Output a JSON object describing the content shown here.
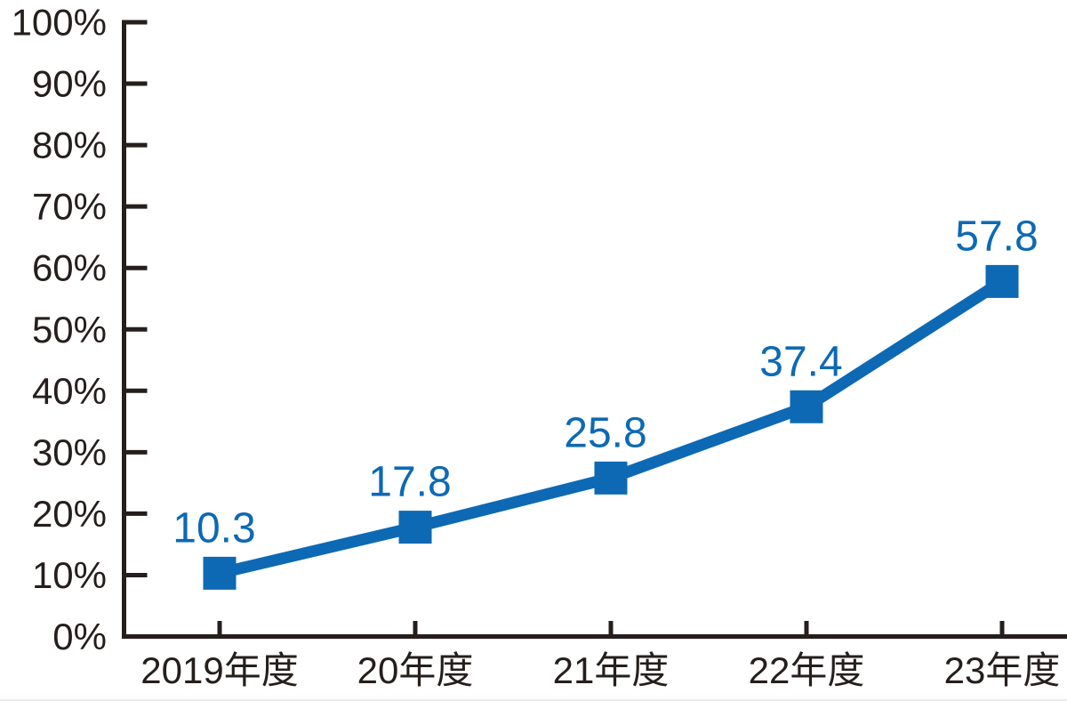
{
  "chart_data": {
    "type": "line",
    "title": "",
    "categories": [
      "2019年度",
      "20年度",
      "21年度",
      "22年度",
      "23年度"
    ],
    "values": [
      10.3,
      17.8,
      25.8,
      37.4,
      57.8
    ],
    "point_labels": [
      "10.3",
      "17.8",
      "25.8",
      "37.4",
      "57.8"
    ],
    "y_tick_labels": [
      "0%",
      "10%",
      "20%",
      "30%",
      "40%",
      "50%",
      "60%",
      "70%",
      "80%",
      "90%",
      "100%"
    ],
    "ylim": [
      0,
      100
    ],
    "y_step": 10,
    "xlabel": "",
    "ylabel": "",
    "grid": false,
    "legend": "none",
    "marker": "square",
    "colors": {
      "line": "#0d69b4",
      "marker": "#0d69b4",
      "point_label_text": "#0d69b4",
      "axis": "#251e1c",
      "tick_label_text": "#251e1c",
      "background": "#ffffff",
      "bottom_divider": "#eceae9"
    }
  }
}
